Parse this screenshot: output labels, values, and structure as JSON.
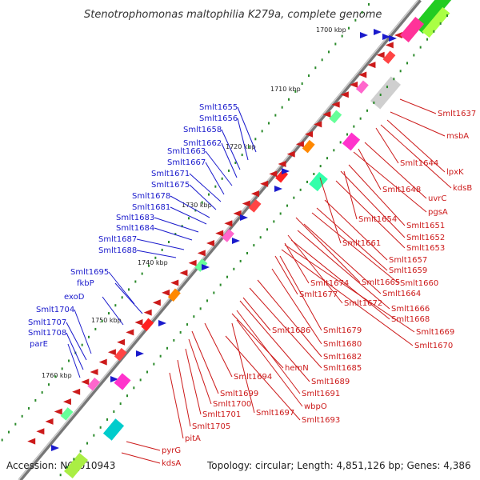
{
  "header": {
    "title": "Stenotrophomonas maltophilia K279a, complete genome"
  },
  "footer": {
    "accession": "Accession: NC_010943",
    "summary": "Topology: circular; Length: 4,851,126 bp; Genes: 4,386"
  },
  "scale_labels": [
    "1700 kbp",
    "1710 kbp",
    "1720 kbp",
    "1730 kbp",
    "1740 kbp",
    "1750 kbp",
    "1760 kbp"
  ],
  "left_genes": [
    "Smlt1655",
    "Smlt1656",
    "Smlt1658",
    "Smlt1662",
    "Smlt1663",
    "Smlt1667",
    "Smlt1671",
    "Smlt1675",
    "Smlt1678",
    "Smlt1681",
    "Smlt1683",
    "Smlt1684",
    "Smlt1687",
    "Smlt1688",
    "Smlt1695",
    "fkbP",
    "exoD",
    "Smlt1704",
    "Smlt1707",
    "Smlt1708",
    "parE"
  ],
  "right_genes": [
    "Smlt1637",
    "msbA",
    "Smlt1644",
    "lpxK",
    "kdsB",
    "uvrC",
    "Smlt1648",
    "pgsA",
    "Smlt1654",
    "Smlt1651",
    "Smlt1652",
    "Smlt1661",
    "Smlt1653",
    "Smlt1657",
    "Smlt1659",
    "Smlt1665",
    "Smlt1660",
    "Smlt1674",
    "Smlt1664",
    "Smlt1677",
    "Smlt1672",
    "Smlt1666",
    "Smlt1668",
    "Smlt1686",
    "Smlt1679",
    "Smlt1669",
    "Smlt1680",
    "Smlt1670",
    "Smlt1682",
    "hemN",
    "Smlt1685",
    "Smlt1689",
    "Smlt1694",
    "Smlt1691",
    "wbpO",
    "Smlt1699",
    "Smlt1700",
    "Smlt1697",
    "Smlt1701",
    "Smlt1693",
    "Smlt1705",
    "pitA",
    "pyrG",
    "kdsA"
  ],
  "colors": {
    "forward": "#1a1acc",
    "reverse": "#cc1a1a",
    "backbone": "#777777",
    "tick": "#2a8a2a"
  }
}
